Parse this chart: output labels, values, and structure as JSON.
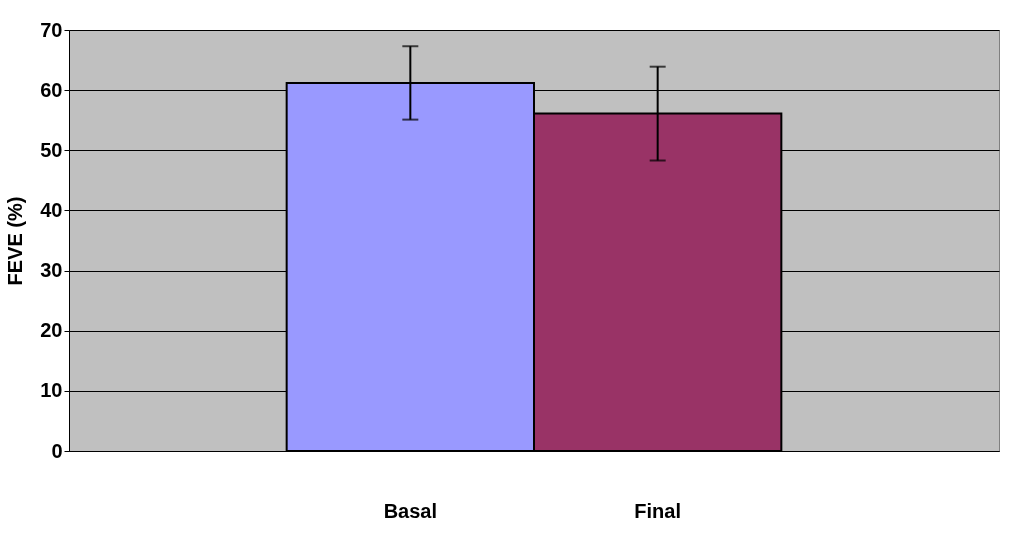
{
  "chart_data": {
    "type": "bar",
    "ylabel": "FEVE (%)",
    "categories": [
      "Basal",
      "Final"
    ],
    "values": [
      61.2,
      56.1
    ],
    "colors": [
      "#9999ff",
      "#993366"
    ],
    "errors": [
      6.1,
      7.8
    ],
    "ylim": [
      0,
      70
    ],
    "yticks": [
      0,
      10,
      20,
      30,
      40,
      50,
      60,
      70
    ],
    "grid": "y"
  }
}
